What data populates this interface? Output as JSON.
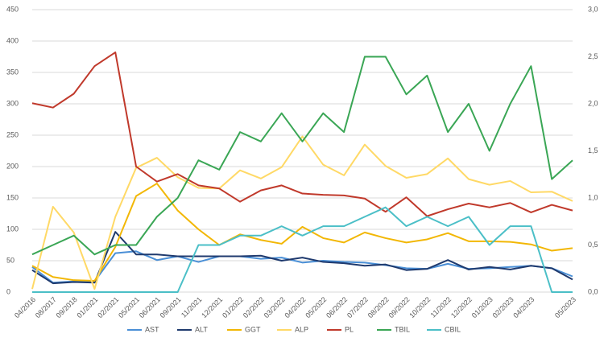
{
  "chart_data": {
    "type": "line",
    "categories": [
      "04/2016",
      "08/2017",
      "09/2018",
      "01/2021",
      "02/2021",
      "05/2021",
      "06/2021",
      "09/2021",
      "11/2021",
      "12/2021",
      "01/2022",
      "02/2022",
      "03/2022",
      "04/2022",
      "05/2022",
      "06/2022",
      "07/2022",
      "08/2022",
      "09/2022",
      "10/2022",
      "11/2022",
      "12/2022",
      "01/2023",
      "02/2023",
      "04/2023",
      null,
      "05/2023"
    ],
    "series": [
      {
        "name": "AST",
        "color": "#4a8fd6",
        "values": [
          40,
          15,
          17,
          17,
          62,
          65,
          51,
          57,
          48,
          57,
          57,
          53,
          55,
          47,
          50,
          48,
          47,
          43,
          38,
          37,
          45,
          37,
          38,
          40,
          42,
          38,
          25
        ]
      },
      {
        "name": "ALT",
        "color": "#1f3a6e",
        "values": [
          35,
          14,
          16,
          15,
          96,
          60,
          60,
          57,
          57,
          57,
          57,
          58,
          50,
          55,
          48,
          46,
          42,
          44,
          35,
          37,
          51,
          36,
          40,
          36,
          42,
          38,
          20
        ]
      },
      {
        "name": "GGT",
        "color": "#f2b705",
        "values": [
          42,
          24,
          19,
          18,
          72,
          153,
          173,
          130,
          100,
          75,
          92,
          83,
          77,
          104,
          86,
          79,
          95,
          86,
          79,
          84,
          94,
          81,
          81,
          80,
          76,
          66,
          70
        ]
      },
      {
        "name": "ALP",
        "color": "#ffd966",
        "values": [
          5,
          136,
          95,
          5,
          120,
          198,
          214,
          183,
          166,
          165,
          194,
          181,
          199,
          248,
          203,
          186,
          235,
          201,
          182,
          188,
          213,
          180,
          171,
          177,
          159,
          160,
          145
        ]
      },
      {
        "name": "PL",
        "color": "#c0392b",
        "values": [
          301,
          294,
          316,
          360,
          382,
          200,
          176,
          188,
          170,
          165,
          144,
          162,
          170,
          157,
          155,
          154,
          149,
          128,
          151,
          121,
          132,
          141,
          135,
          142,
          127,
          139,
          130
        ]
      },
      {
        "name": "TBIL",
        "color": "#3aa655",
        "axis": "y2",
        "values": [
          0.4,
          0.5,
          0.6,
          0.4,
          0.5,
          0.5,
          0.8,
          1.0,
          1.4,
          1.3,
          1.7,
          1.6,
          1.9,
          1.6,
          1.9,
          1.7,
          2.5,
          2.5,
          2.1,
          2.3,
          1.7,
          2.0,
          1.5,
          2.0,
          2.4,
          1.2,
          1.4
        ]
      },
      {
        "name": "CBIL",
        "color": "#4bbfc7",
        "axis": "y2",
        "values": [
          0,
          0,
          0,
          0,
          0,
          0,
          0,
          0,
          0.5,
          0.5,
          0.6,
          0.6,
          0.7,
          0.6,
          0.7,
          0.7,
          0.8,
          0.9,
          0.7,
          0.8,
          0.7,
          0.8,
          0.5,
          0.7,
          0.7,
          0,
          0
        ]
      }
    ],
    "ylim": [
      0,
      450
    ],
    "yticks": [
      0,
      50,
      100,
      150,
      200,
      250,
      300,
      350,
      400,
      450
    ],
    "y2lim": [
      0,
      3
    ],
    "y2ticks": [
      {
        "value": 0,
        "label": "0,0"
      },
      {
        "value": 0.5,
        "label": "0,5"
      },
      {
        "value": 1,
        "label": "1,0"
      },
      {
        "value": 1.5,
        "label": "1,5"
      },
      {
        "value": 2,
        "label": "2,0"
      },
      {
        "value": 2.5,
        "label": "2,5"
      },
      {
        "value": 3,
        "label": "3,0"
      }
    ],
    "grid": true,
    "legend": "bottom"
  }
}
